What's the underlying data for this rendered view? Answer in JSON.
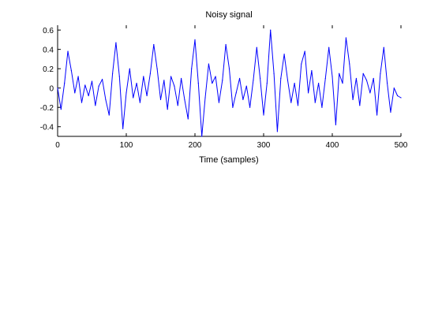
{
  "chart_data": {
    "type": "line",
    "title": "Noisy signal",
    "xlabel": "Time (samples)",
    "ylabel": "",
    "xlim": [
      0,
      500
    ],
    "ylim": [
      -0.5,
      0.65
    ],
    "xticks": [
      0,
      100,
      200,
      300,
      400,
      500
    ],
    "yticks": [
      -0.4,
      -0.2,
      0,
      0.2,
      0.4,
      0.6
    ],
    "xtick_labels": [
      "0",
      "100",
      "200",
      "300",
      "400",
      "500"
    ],
    "ytick_labels": [
      "-0.4",
      "-0.2",
      "0",
      "0.2",
      "0.4",
      "0.6"
    ],
    "grid": false,
    "series": [
      {
        "color": "#0000ff",
        "x": [
          0,
          5,
          10,
          15,
          20,
          25,
          30,
          35,
          40,
          45,
          50,
          55,
          60,
          65,
          70,
          75,
          80,
          85,
          90,
          95,
          100,
          105,
          110,
          115,
          120,
          125,
          130,
          135,
          140,
          145,
          150,
          155,
          160,
          165,
          170,
          175,
          180,
          185,
          190,
          195,
          200,
          205,
          210,
          215,
          220,
          225,
          230,
          235,
          240,
          245,
          250,
          255,
          260,
          265,
          270,
          275,
          280,
          285,
          290,
          295,
          300,
          305,
          310,
          315,
          320,
          325,
          330,
          335,
          340,
          345,
          350,
          355,
          360,
          365,
          370,
          375,
          380,
          385,
          390,
          395,
          400,
          405,
          410,
          415,
          420,
          425,
          430,
          435,
          440,
          445,
          450,
          455,
          460,
          465,
          470,
          475,
          480,
          485,
          490,
          495,
          500
        ],
        "y": [
          0.0,
          -0.22,
          0.05,
          0.38,
          0.18,
          -0.05,
          0.12,
          -0.15,
          0.03,
          -0.08,
          0.07,
          -0.18,
          0.02,
          0.09,
          -0.12,
          -0.28,
          0.15,
          0.47,
          0.12,
          -0.42,
          -0.05,
          0.2,
          -0.1,
          0.05,
          -0.15,
          0.12,
          -0.08,
          0.15,
          0.45,
          0.2,
          -0.12,
          0.08,
          -0.22,
          0.12,
          0.02,
          -0.18,
          0.1,
          -0.12,
          -0.32,
          0.2,
          0.5,
          0.05,
          -0.5,
          -0.1,
          0.25,
          0.05,
          0.12,
          -0.15,
          0.08,
          0.45,
          0.2,
          -0.2,
          -0.05,
          0.1,
          -0.12,
          0.02,
          -0.2,
          0.08,
          0.42,
          0.1,
          -0.28,
          0.05,
          0.6,
          0.15,
          -0.45,
          0.1,
          0.35,
          0.08,
          -0.15,
          0.05,
          -0.18,
          0.25,
          0.38,
          -0.05,
          0.18,
          -0.15,
          0.05,
          -0.2,
          0.1,
          0.42,
          0.12,
          -0.38,
          0.15,
          0.05,
          0.52,
          0.25,
          -0.12,
          0.1,
          -0.18,
          0.15,
          0.08,
          -0.05,
          0.1,
          -0.28,
          0.15,
          0.42,
          0.05,
          -0.25,
          0.0,
          -0.08,
          -0.1
        ]
      }
    ]
  }
}
